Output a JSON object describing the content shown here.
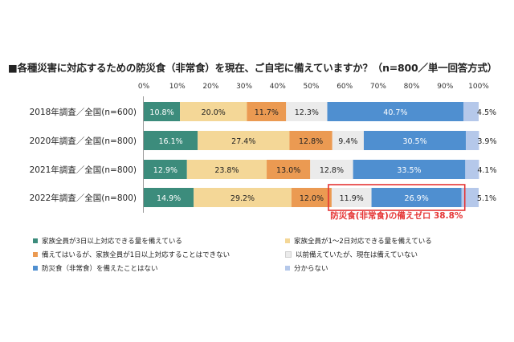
{
  "chart_data": {
    "type": "bar",
    "orientation": "horizontal",
    "stacked": true,
    "title": "■各種災害に対応するための防災食（非常食）を現在、ご自宅に備えていますか？（n=800／単一回答方式）",
    "xlim": [
      0,
      100
    ],
    "ticks": [
      "0%",
      "10%",
      "20%",
      "30%",
      "40%",
      "50%",
      "60%",
      "70%",
      "80%",
      "90%",
      "100%"
    ],
    "categories": [
      "2018年調査／全国(n=600)",
      "2020年調査／全国(n=800)",
      "2021年調査／全国(n=800)",
      "2022年調査／全国(n=800)"
    ],
    "series": [
      {
        "name": "家族全員が3日以上対応できる量を備えている",
        "color": "#3c8c7c",
        "values": [
          10.8,
          16.1,
          12.9,
          14.9
        ],
        "labels": [
          "10.8%",
          "16.1%",
          "12.9%",
          "14.9%"
        ]
      },
      {
        "name": "家族全員が1～2日対応できる量を備えている",
        "color": "#f4d797",
        "values": [
          20.0,
          27.4,
          23.8,
          29.2
        ],
        "labels": [
          "20.0%",
          "27.4%",
          "23.8%",
          "29.2%"
        ]
      },
      {
        "name": "備えてはいるが、家族全員が1日以上対応することはできない",
        "color": "#eb9a52",
        "values": [
          11.7,
          12.8,
          13.0,
          12.0
        ],
        "labels": [
          "11.7%",
          "12.8%",
          "13.0%",
          "12.0%"
        ]
      },
      {
        "name": "以前備えていたが、現在は備えていない",
        "color": "#ebebeb",
        "values": [
          12.3,
          9.4,
          12.8,
          11.9
        ],
        "labels": [
          "12.3%",
          "9.4%",
          "12.8%",
          "11.9%"
        ]
      },
      {
        "name": "防災食（非常食）を備えたことはない",
        "color": "#4f8fd0",
        "values": [
          40.7,
          30.5,
          33.5,
          26.9
        ],
        "labels": [
          "40.7%",
          "30.5%",
          "33.5%",
          "26.9%"
        ]
      },
      {
        "name": "分からない",
        "color": "#b5c8ea",
        "values": [
          4.5,
          3.9,
          4.1,
          5.1
        ],
        "labels": [
          "4.5%",
          "3.9%",
          "4.1%",
          "5.1%"
        ]
      }
    ],
    "annotation": {
      "text": "防災食(非常食)の備えゼロ 38.8%",
      "category_index": 3,
      "from_series": 3,
      "to_series": 4,
      "color": "#e53535"
    }
  }
}
